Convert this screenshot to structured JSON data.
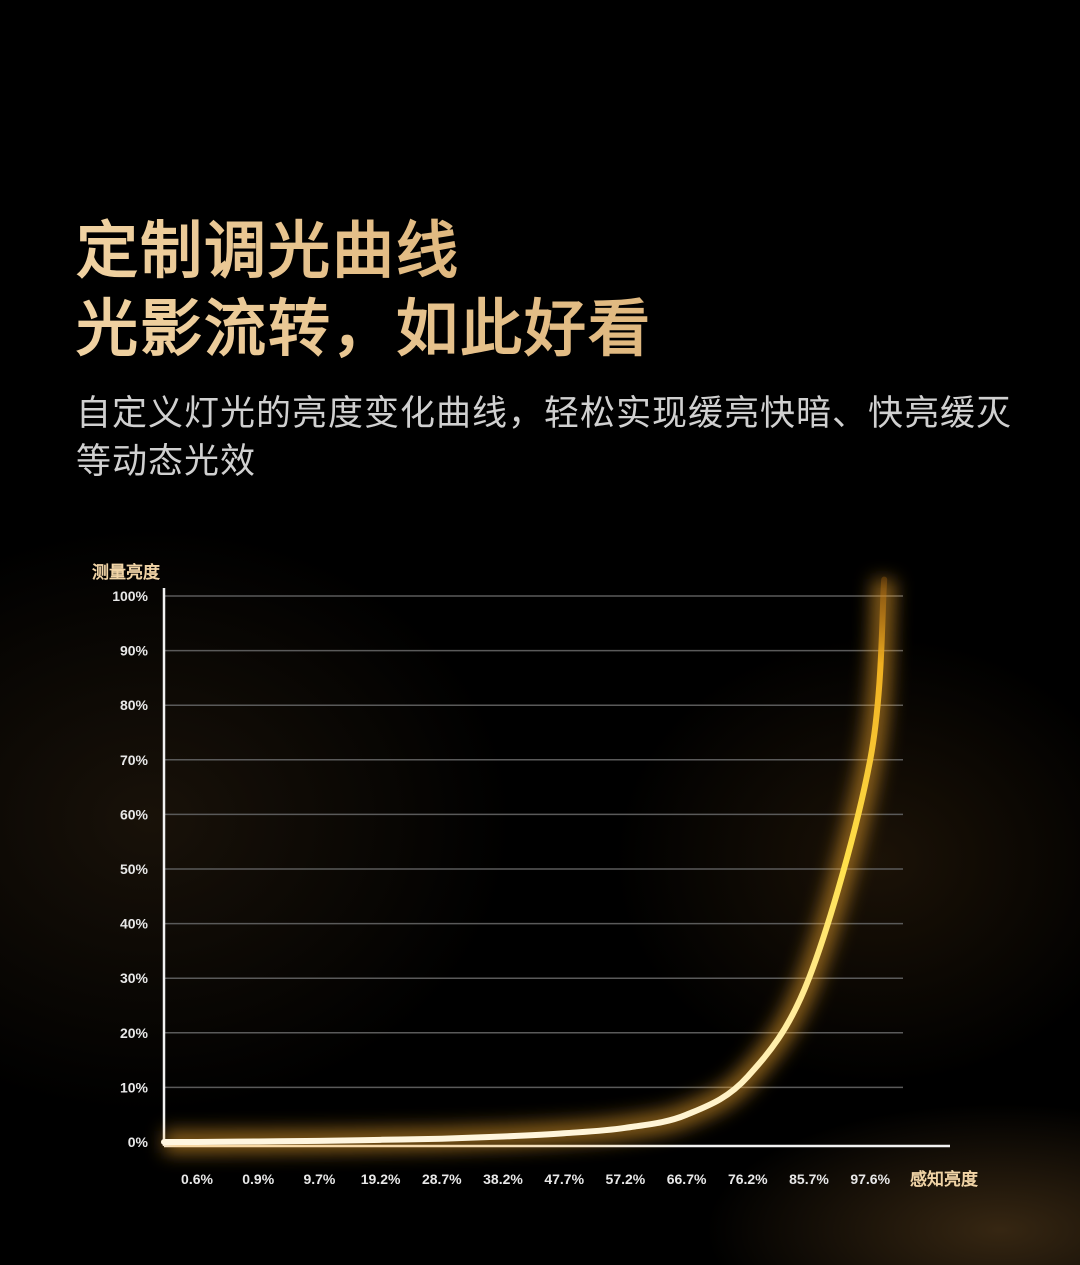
{
  "heading": {
    "line1": "定制调光曲线",
    "line2": "光影流转，如此好看",
    "subtitle": "自定义灯光的亮度变化曲线，轻松实现缓亮快暗、快亮缓灭等动态光效"
  },
  "colors": {
    "title": "#e9c795",
    "curve_start": "#ffffff",
    "curve_mid": "#ffe04a",
    "curve_end": "#d98a1a",
    "grid": "#5a5a5a"
  },
  "chart_data": {
    "type": "line",
    "ylabel": "测量亮度",
    "xlabel": "感知亮度",
    "ylim": [
      0,
      100
    ],
    "yticks": [
      "0%",
      "10%",
      "20%",
      "30%",
      "40%",
      "50%",
      "60%",
      "70%",
      "80%",
      "90%",
      "100%"
    ],
    "categories": [
      "0.6%",
      "0.9%",
      "9.7%",
      "19.2%",
      "28.7%",
      "38.2%",
      "47.7%",
      "57.2%",
      "66.7%",
      "76.2%",
      "85.7%",
      "97.6%"
    ],
    "series": [
      {
        "values": [
          0,
          0.1,
          0.2,
          0.4,
          0.6,
          1,
          1.6,
          2.6,
          5,
          12,
          30,
          70
        ]
      }
    ],
    "curve_max": 103,
    "grid": true
  }
}
